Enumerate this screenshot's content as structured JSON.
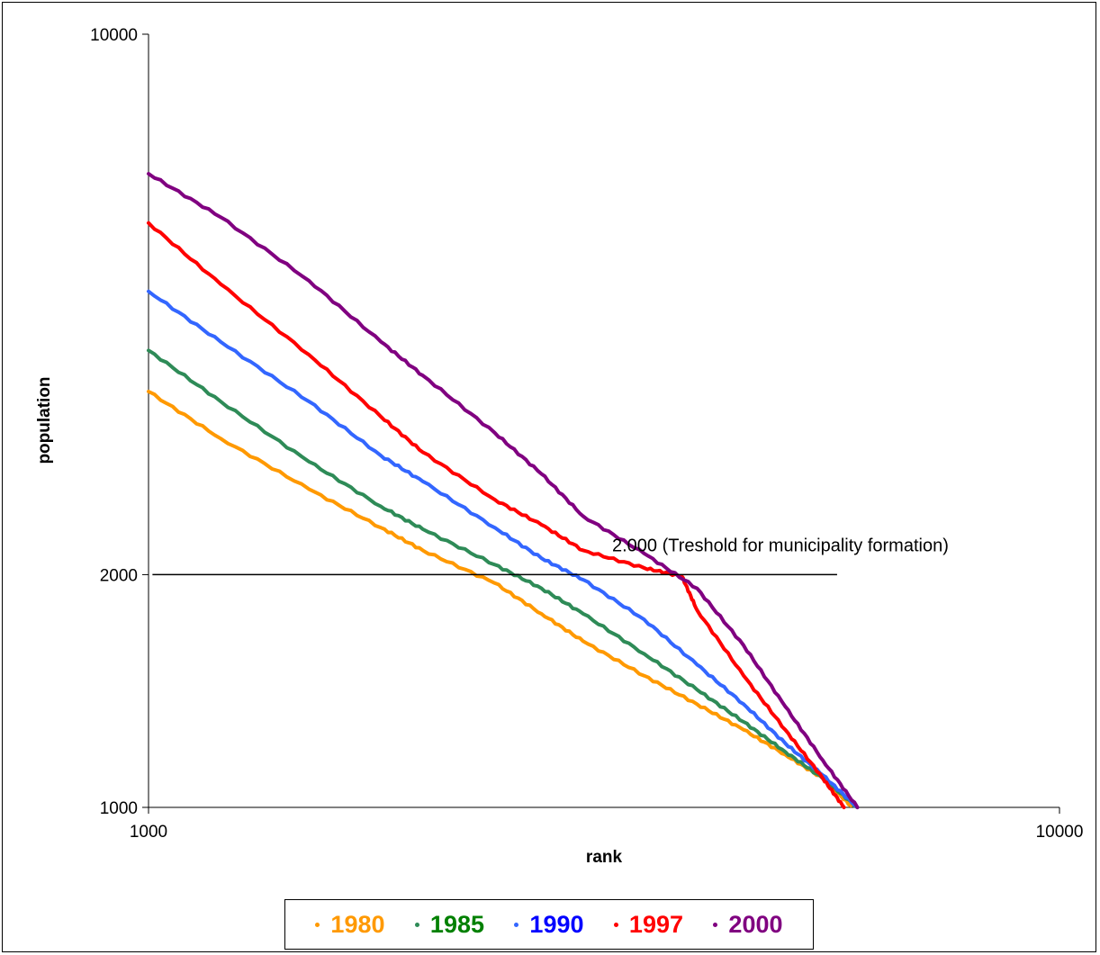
{
  "chart_data": {
    "type": "line",
    "x_scale": "log",
    "y_scale": "log",
    "xlabel": "rank",
    "ylabel": "population",
    "xlim": [
      1000,
      10000
    ],
    "ylim": [
      1000,
      10000
    ],
    "x_ticks": [
      "1000",
      "10000"
    ],
    "y_ticks": [
      "10000",
      "2000",
      "1000"
    ],
    "y_tick_values": [
      10000,
      2000,
      1000
    ],
    "annotation": {
      "text": "2.000 (Treshold for municipality formation)",
      "y": 2000,
      "x_from": 1010,
      "x_to": 5700
    },
    "legend_position": "bottom",
    "series": [
      {
        "name": "1980",
        "color": "#FF9900",
        "label_color": "#FF9900",
        "points": [
          [
            1000,
            3450
          ],
          [
            1200,
            3000
          ],
          [
            1500,
            2580
          ],
          [
            1800,
            2300
          ],
          [
            2000,
            2150
          ],
          [
            2400,
            1950
          ],
          [
            2700,
            1780
          ],
          [
            3000,
            1640
          ],
          [
            3500,
            1480
          ],
          [
            4000,
            1360
          ],
          [
            4500,
            1260
          ],
          [
            5000,
            1170
          ],
          [
            5500,
            1090
          ],
          [
            5900,
            1005
          ]
        ]
      },
      {
        "name": "1985",
        "color": "#2E8B57",
        "label_color": "#008000",
        "points": [
          [
            1000,
            3900
          ],
          [
            1200,
            3350
          ],
          [
            1500,
            2800
          ],
          [
            1800,
            2450
          ],
          [
            2000,
            2290
          ],
          [
            2400,
            2060
          ],
          [
            2700,
            1920
          ],
          [
            3000,
            1780
          ],
          [
            3500,
            1580
          ],
          [
            4000,
            1420
          ],
          [
            4500,
            1290
          ],
          [
            5000,
            1180
          ],
          [
            5500,
            1090
          ],
          [
            6000,
            1000
          ]
        ]
      },
      {
        "name": "1990",
        "color": "#3366FF",
        "label_color": "#0000FF",
        "points": [
          [
            1000,
            4650
          ],
          [
            1200,
            4000
          ],
          [
            1500,
            3350
          ],
          [
            1800,
            2850
          ],
          [
            2000,
            2640
          ],
          [
            2400,
            2300
          ],
          [
            2700,
            2100
          ],
          [
            3000,
            1970
          ],
          [
            3500,
            1750
          ],
          [
            4000,
            1530
          ],
          [
            4500,
            1360
          ],
          [
            5000,
            1210
          ],
          [
            5500,
            1100
          ],
          [
            6000,
            1000
          ]
        ]
      },
      {
        "name": "1997",
        "color": "#FF0000",
        "label_color": "#FF0000",
        "points": [
          [
            1000,
            5700
          ],
          [
            1200,
            4750
          ],
          [
            1500,
            3850
          ],
          [
            1800,
            3200
          ],
          [
            2000,
            2880
          ],
          [
            2400,
            2500
          ],
          [
            2700,
            2320
          ],
          [
            3000,
            2150
          ],
          [
            3500,
            2040
          ],
          [
            3850,
            1990
          ],
          [
            4000,
            1800
          ],
          [
            4500,
            1480
          ],
          [
            5000,
            1260
          ],
          [
            5500,
            1090
          ],
          [
            5800,
            1000
          ]
        ]
      },
      {
        "name": "2000",
        "color": "#800080",
        "label_color": "#800080",
        "points": [
          [
            1000,
            6600
          ],
          [
            1200,
            5800
          ],
          [
            1500,
            4800
          ],
          [
            1800,
            4000
          ],
          [
            2000,
            3620
          ],
          [
            2400,
            3050
          ],
          [
            2700,
            2700
          ],
          [
            3000,
            2380
          ],
          [
            3500,
            2130
          ],
          [
            4000,
            1920
          ],
          [
            4500,
            1620
          ],
          [
            5000,
            1350
          ],
          [
            5500,
            1150
          ],
          [
            6000,
            1000
          ]
        ]
      }
    ]
  }
}
